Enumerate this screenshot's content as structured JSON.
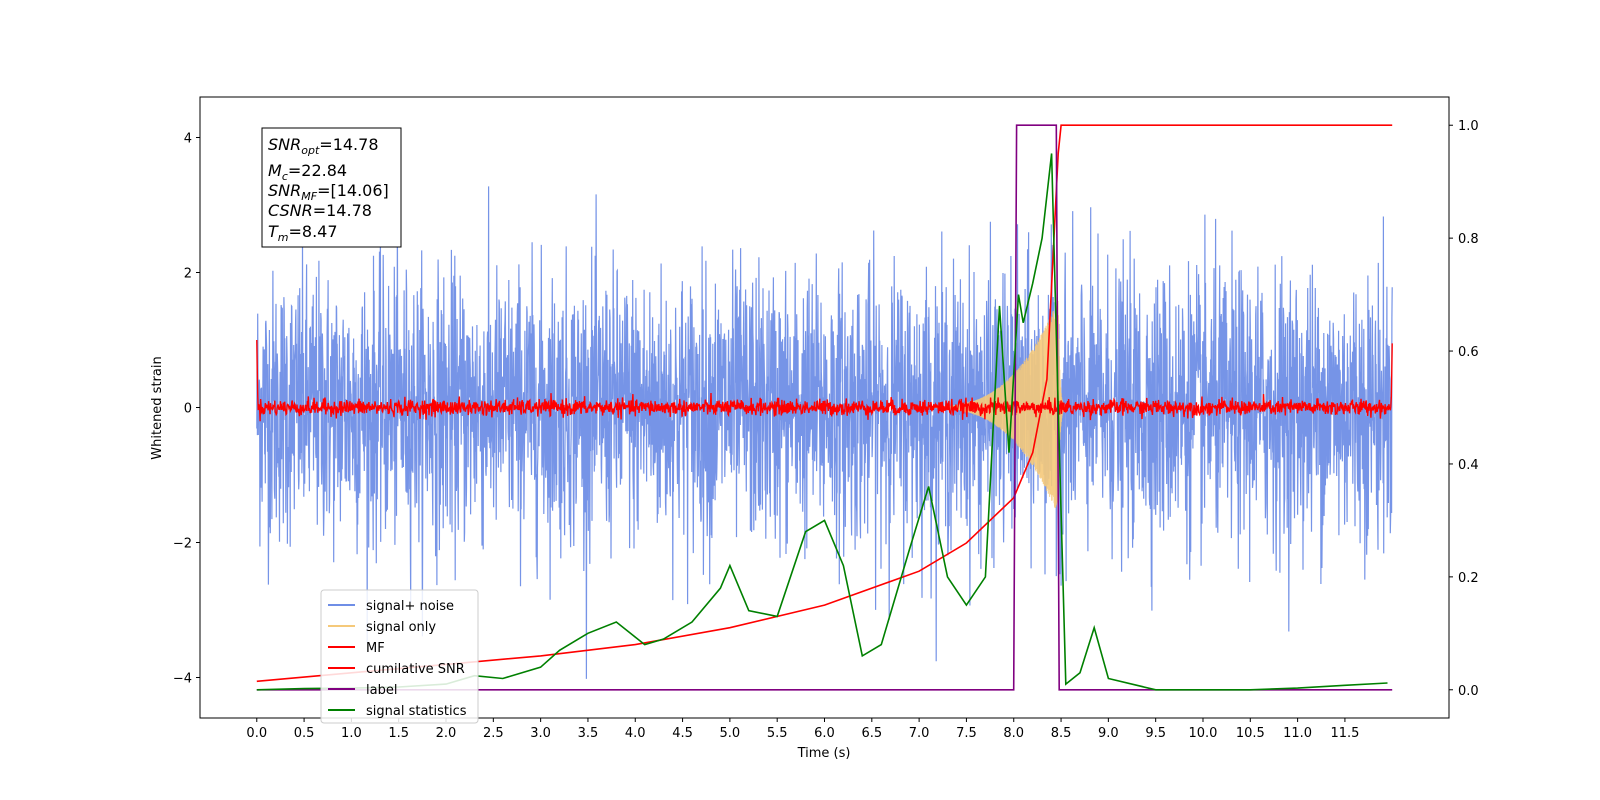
{
  "chart_data": {
    "type": "line",
    "xlabel": "Time (s)",
    "ylabel": "Whitened strain",
    "xlim": [
      -0.6,
      12.6
    ],
    "ylim": [
      -4.6,
      4.6
    ],
    "y2lim": [
      -0.05,
      1.05
    ],
    "x_ticks": [
      "0.0",
      "0.5",
      "1.0",
      "1.5",
      "2.0",
      "2.5",
      "3.0",
      "3.5",
      "4.0",
      "4.5",
      "5.0",
      "5.5",
      "6.0",
      "6.5",
      "7.0",
      "7.5",
      "8.0",
      "8.5",
      "9.0",
      "9.5",
      "10.0",
      "10.5",
      "11.0",
      "11.5"
    ],
    "y_ticks": [
      "4",
      "2",
      "0",
      "−2",
      "−4"
    ],
    "y2_ticks": [
      "1.0",
      "0.8",
      "0.6",
      "0.4",
      "0.2",
      "0.0"
    ],
    "annotation": {
      "snr_opt": "=14.78",
      "mc": "=22.84",
      "snr_mf": "=[14.06]",
      "csnr": "=14.78",
      "tm": "=8.47"
    },
    "legend_position": "lower-left",
    "series": [
      {
        "name": "signal+ noise",
        "color": "#6f8ee6",
        "description": "noise band approx ±2.5 with spikes up to ±3.6, t 0–12"
      },
      {
        "name": "signal only",
        "color": "#f5c97a",
        "description": "chirp growing from ~7.5 s to ~1.6 amplitude at 8.47 s"
      },
      {
        "name": "MF",
        "color": "#ff0000",
        "description": "near 0 with spikes at edges to ~1.0"
      },
      {
        "name": "cumilative SNR",
        "color": "#ff0000",
        "axis": "right",
        "x": [
          0.0,
          1.0,
          2.0,
          3.0,
          4.0,
          5.0,
          6.0,
          7.0,
          7.5,
          8.0,
          8.2,
          8.35,
          8.47,
          8.5,
          12.0
        ],
        "values": [
          0.015,
          0.03,
          0.045,
          0.06,
          0.08,
          0.11,
          0.15,
          0.21,
          0.26,
          0.34,
          0.42,
          0.55,
          0.95,
          1.0,
          1.0
        ]
      },
      {
        "name": "label",
        "color": "#800080",
        "axis": "right",
        "x": [
          0.0,
          8.0,
          8.03,
          8.45,
          8.48,
          12.0
        ],
        "values": [
          0.0,
          0.0,
          1.0,
          1.0,
          0.0,
          0.0
        ]
      },
      {
        "name": "signal statistics",
        "color": "#008000",
        "axis": "right",
        "x": [
          0.0,
          0.5,
          1.0,
          1.5,
          2.0,
          2.3,
          2.6,
          3.0,
          3.2,
          3.5,
          3.8,
          4.1,
          4.3,
          4.6,
          4.9,
          5.0,
          5.2,
          5.5,
          5.8,
          6.0,
          6.2,
          6.4,
          6.6,
          6.9,
          7.1,
          7.3,
          7.5,
          7.7,
          7.85,
          7.95,
          8.05,
          8.1,
          8.2,
          8.3,
          8.4,
          8.47,
          8.55,
          8.7,
          8.85,
          9.0,
          9.5,
          10.5,
          11.0,
          11.5,
          11.95
        ],
        "values": [
          0.0,
          0.002,
          0.003,
          0.005,
          0.01,
          0.025,
          0.02,
          0.04,
          0.07,
          0.1,
          0.12,
          0.08,
          0.09,
          0.12,
          0.18,
          0.22,
          0.14,
          0.13,
          0.28,
          0.3,
          0.22,
          0.06,
          0.08,
          0.25,
          0.36,
          0.2,
          0.15,
          0.2,
          0.68,
          0.42,
          0.7,
          0.65,
          0.72,
          0.8,
          0.95,
          0.5,
          0.01,
          0.03,
          0.11,
          0.02,
          0.0,
          0.0,
          0.003,
          0.008,
          0.012
        ]
      }
    ]
  }
}
